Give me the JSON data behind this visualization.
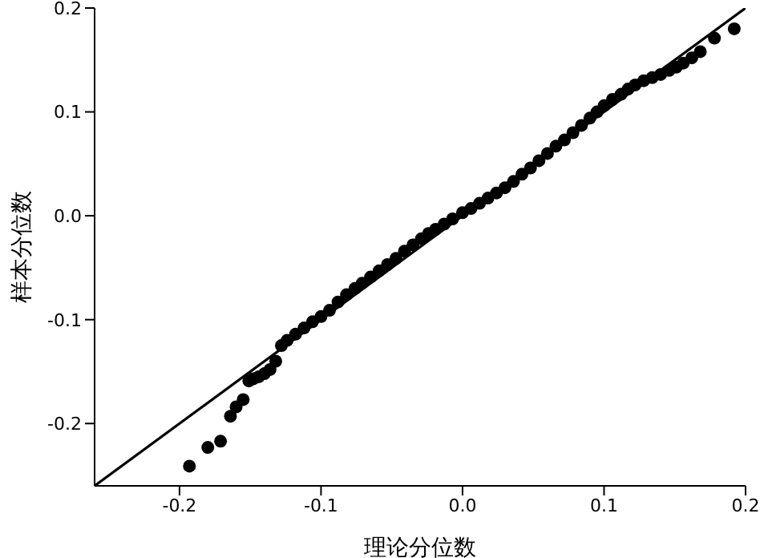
{
  "chart_data": {
    "type": "scatter",
    "xlabel": "理论分位数",
    "ylabel": "样本分位数",
    "xlim": [
      -0.26,
      0.2
    ],
    "ylim": [
      -0.26,
      0.2
    ],
    "xticks": [
      -0.2,
      -0.1,
      {
        "value": 0,
        "label": "0.0"
      },
      0.1,
      0.2
    ],
    "yticks": [
      -0.2,
      -0.1,
      {
        "value": 0,
        "label": "0.0"
      },
      0.1,
      0.2
    ],
    "line_style": "solid",
    "series": [
      {
        "marker": "circle",
        "color": "#000000",
        "x": [
          -0.193,
          -0.18,
          -0.171,
          -0.164,
          -0.16,
          -0.155,
          -0.151,
          -0.148,
          -0.144,
          -0.14,
          -0.136,
          -0.132,
          -0.128,
          -0.124,
          -0.118,
          -0.112,
          -0.106,
          -0.1,
          -0.094,
          -0.088,
          -0.082,
          -0.076,
          -0.071,
          -0.065,
          -0.059,
          -0.053,
          -0.047,
          -0.041,
          -0.035,
          -0.029,
          -0.024,
          -0.019,
          -0.013,
          -0.007,
          0.0,
          0.006,
          0.012,
          0.018,
          0.024,
          0.03,
          0.036,
          0.042,
          0.048,
          0.054,
          0.06,
          0.066,
          0.072,
          0.078,
          0.084,
          0.09,
          0.095,
          0.1,
          0.106,
          0.112,
          0.117,
          0.122,
          0.128,
          0.134,
          0.14,
          0.146,
          0.151,
          0.156,
          0.162,
          0.168,
          0.178,
          0.192
        ],
        "values": [
          -0.241,
          -0.223,
          -0.217,
          -0.193,
          -0.184,
          -0.177,
          -0.159,
          -0.157,
          -0.155,
          -0.152,
          -0.148,
          -0.14,
          -0.125,
          -0.12,
          -0.114,
          -0.108,
          -0.102,
          -0.097,
          -0.091,
          -0.083,
          -0.076,
          -0.07,
          -0.065,
          -0.059,
          -0.053,
          -0.047,
          -0.041,
          -0.034,
          -0.028,
          -0.022,
          -0.017,
          -0.013,
          -0.008,
          -0.003,
          0.003,
          0.007,
          0.012,
          0.017,
          0.022,
          0.027,
          0.033,
          0.04,
          0.046,
          0.053,
          0.06,
          0.067,
          0.073,
          0.08,
          0.087,
          0.094,
          0.1,
          0.106,
          0.112,
          0.117,
          0.122,
          0.126,
          0.13,
          0.133,
          0.136,
          0.14,
          0.143,
          0.147,
          0.152,
          0.158,
          0.171,
          0.18
        ]
      },
      {
        "type": "line",
        "marker": "none",
        "color": "#000000",
        "x": [
          -0.26,
          0.2
        ],
        "values": [
          -0.26,
          0.2
        ]
      }
    ]
  }
}
